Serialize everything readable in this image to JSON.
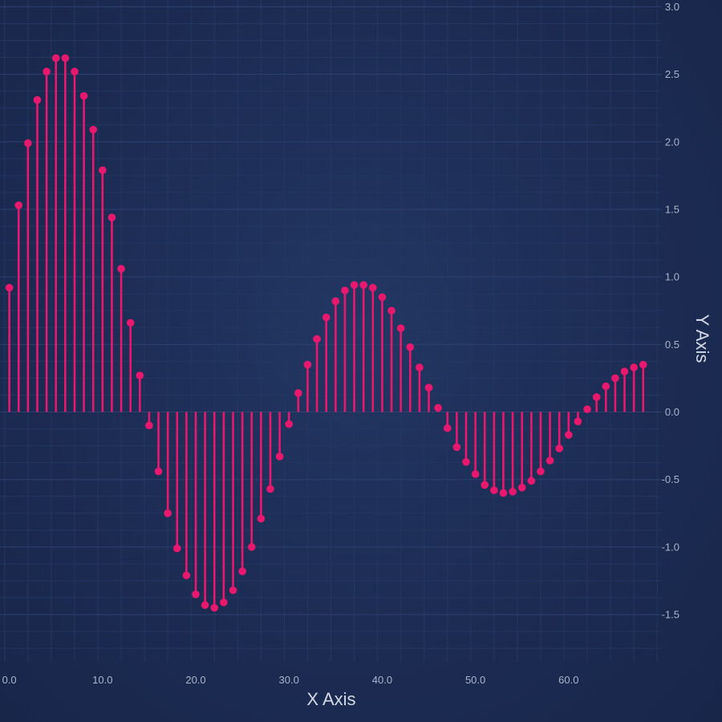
{
  "chart_data": {
    "type": "stem",
    "title": "",
    "xlabel": "X Axis",
    "ylabel": "Y Axis",
    "xlim": [
      -1.0,
      70.0
    ],
    "ylim": [
      -1.85,
      3.05
    ],
    "grid": true,
    "legend": "none",
    "colors": {
      "stem": "#e8186f",
      "tick_label": "#a9b4cc",
      "axis_title": "#d3d9e6",
      "grid_major": "#2c4170",
      "grid_minor": "#233760"
    },
    "x_ticks": [
      0,
      10,
      20,
      30,
      40,
      50,
      60
    ],
    "x_tick_labels": [
      "0.0",
      "10.0",
      "20.0",
      "30.0",
      "40.0",
      "50.0",
      "60.0"
    ],
    "y_ticks": [
      -1.5,
      -1.0,
      -0.5,
      0.0,
      0.5,
      1.0,
      1.5,
      2.0,
      2.5,
      3.0
    ],
    "y_tick_labels": [
      "-1.5",
      "-1.0",
      "-0.5",
      "0.0",
      "0.5",
      "1.0",
      "1.5",
      "2.0",
      "2.5",
      "3.0"
    ],
    "series": [
      {
        "x": [
          0,
          1,
          2,
          3,
          4,
          5,
          6,
          7,
          8,
          9,
          10,
          11,
          12,
          13,
          14,
          15,
          16,
          17,
          18,
          19,
          20,
          21,
          22,
          23,
          24,
          25,
          26,
          27,
          28,
          29,
          30,
          31,
          32,
          33,
          34,
          35,
          36,
          37,
          38,
          39,
          40,
          41,
          42,
          43,
          44,
          45,
          46,
          47,
          48,
          49,
          50,
          51,
          52,
          53,
          54,
          55,
          56,
          57,
          58,
          59,
          60,
          61,
          62,
          63,
          64,
          65,
          66,
          67,
          68
        ],
        "values": [
          0.92,
          1.53,
          1.99,
          2.31,
          2.52,
          2.62,
          2.62,
          2.52,
          2.34,
          2.09,
          1.79,
          1.44,
          1.06,
          0.66,
          0.27,
          -0.1,
          -0.44,
          -0.75,
          -1.01,
          -1.21,
          -1.35,
          -1.43,
          -1.45,
          -1.41,
          -1.32,
          -1.18,
          -1.0,
          -0.79,
          -0.57,
          -0.33,
          -0.09,
          0.14,
          0.35,
          0.54,
          0.7,
          0.82,
          0.9,
          0.94,
          0.94,
          0.92,
          0.85,
          0.75,
          0.62,
          0.48,
          0.33,
          0.18,
          0.03,
          -0.12,
          -0.26,
          -0.37,
          -0.46,
          -0.54,
          -0.58,
          -0.6,
          -0.59,
          -0.56,
          -0.51,
          -0.44,
          -0.36,
          -0.27,
          -0.17,
          -0.07,
          0.02,
          0.11,
          0.19,
          0.25,
          0.3,
          0.33,
          0.35
        ]
      }
    ]
  }
}
